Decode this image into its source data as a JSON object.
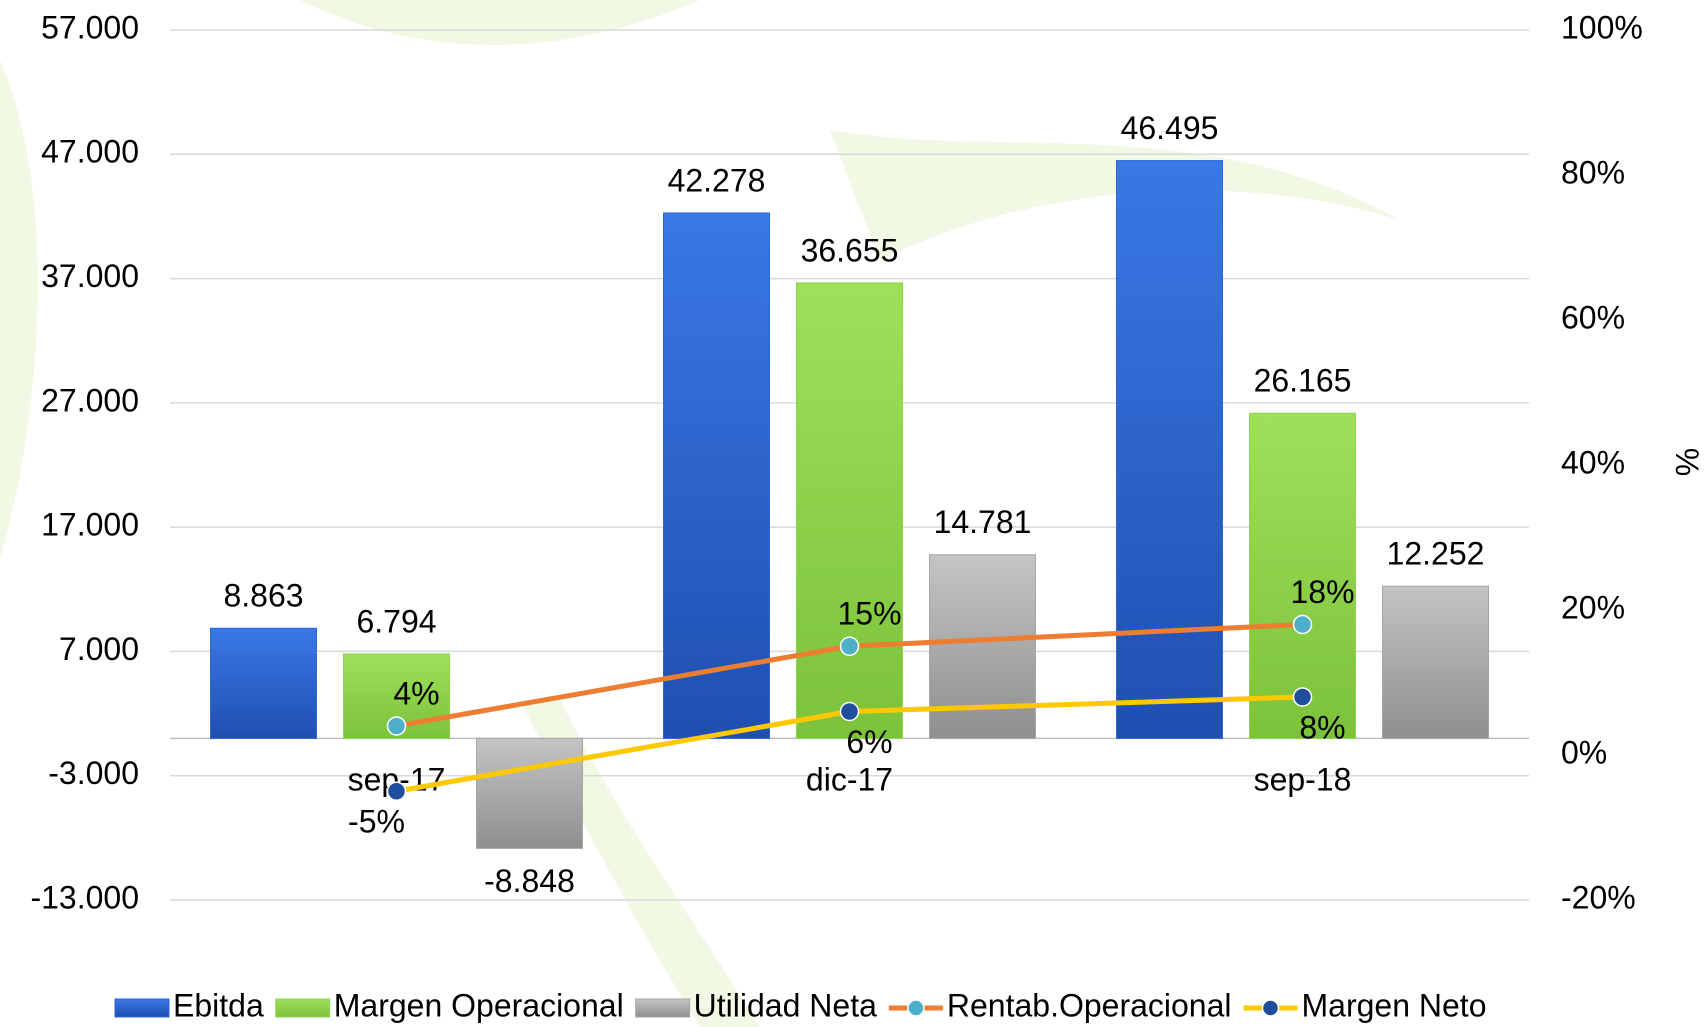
{
  "chart_data": {
    "type": "bar",
    "categories": [
      "sep-17",
      "dic-17",
      "sep-18"
    ],
    "series": [
      {
        "name": "Ebitda",
        "type": "bar",
        "color": "#2f66d4",
        "values": [
          8863,
          42278,
          46495
        ],
        "value_labels": [
          "8.863",
          "42.278",
          "46.495"
        ]
      },
      {
        "name": "Margen Operacional",
        "type": "bar",
        "color": "#8fd44a",
        "values": [
          6794,
          36655,
          26165
        ],
        "value_labels": [
          "6.794",
          "36.655",
          "26.165"
        ]
      },
      {
        "name": "Utilidad Neta",
        "type": "bar",
        "color": "#a6a6a6",
        "values": [
          -8848,
          14781,
          12252
        ],
        "value_labels": [
          "-8.848",
          "14.781",
          "12.252"
        ]
      },
      {
        "name": "Rentab.Operacional",
        "type": "line",
        "axis": "y2",
        "color": "#ed7d31",
        "marker_color": "#4db0c8",
        "values": [
          4,
          15,
          18
        ],
        "value_labels": [
          "4%",
          "15%",
          "18%"
        ]
      },
      {
        "name": "Margen Neto",
        "type": "line",
        "axis": "y2",
        "color": "#ffc800",
        "marker_color": "#1f4e9c",
        "values": [
          -5,
          6,
          8
        ],
        "value_labels": [
          "-5%",
          "6%",
          "8%"
        ]
      }
    ],
    "ylim": [
      -13000,
      57000
    ],
    "yticks": [
      {
        "value": -13000,
        "label": "-13.000"
      },
      {
        "value": -3000,
        "label": "-3.000"
      },
      {
        "value": 7000,
        "label": "7.000"
      },
      {
        "value": 17000,
        "label": "17.000"
      },
      {
        "value": 27000,
        "label": "27.000"
      },
      {
        "value": 37000,
        "label": "37.000"
      },
      {
        "value": 47000,
        "label": "47.000"
      },
      {
        "value": 57000,
        "label": "57.000"
      }
    ],
    "y2label": "%",
    "y2lim": [
      -20,
      100
    ],
    "y2ticks": [
      {
        "value": -20,
        "label": "-20%"
      },
      {
        "value": 0,
        "label": "0%"
      },
      {
        "value": 20,
        "label": "20%"
      },
      {
        "value": 40,
        "label": "40%"
      },
      {
        "value": 60,
        "label": "60%"
      },
      {
        "value": 80,
        "label": "80%"
      },
      {
        "value": 100,
        "label": "100%"
      }
    ],
    "grid": true,
    "legend": "bottom"
  }
}
